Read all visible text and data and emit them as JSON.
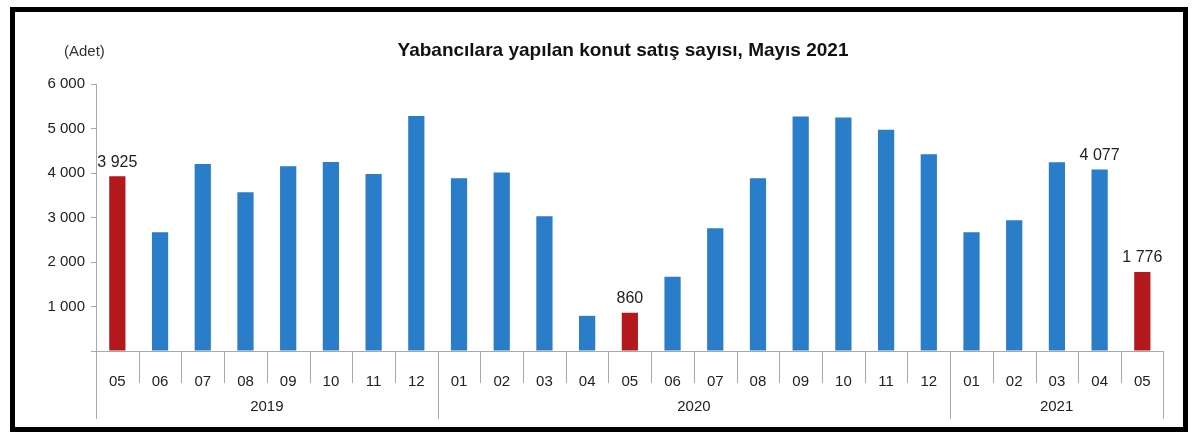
{
  "chart_data": {
    "type": "bar",
    "title": "Yabancılara yapılan konut satış sayısı, Mayıs 2021",
    "ylabel": "(Adet)",
    "x": [
      "2019-05",
      "2019-06",
      "2019-07",
      "2019-08",
      "2019-09",
      "2019-10",
      "2019-11",
      "2019-12",
      "2020-01",
      "2020-02",
      "2020-03",
      "2020-04",
      "2020-05",
      "2020-06",
      "2020-07",
      "2020-08",
      "2020-09",
      "2020-10",
      "2020-11",
      "2020-12",
      "2021-01",
      "2021-02",
      "2021-03",
      "2021-04",
      "2021-05"
    ],
    "values": [
      3925,
      2670,
      4200,
      3570,
      4150,
      4250,
      3980,
      5280,
      3880,
      4010,
      3030,
      790,
      860,
      1670,
      2760,
      3880,
      5270,
      5250,
      4970,
      4420,
      2670,
      2940,
      4240,
      4077,
      1776
    ],
    "colors": [
      "#b3191c",
      "#2a7dc9",
      "#2a7dc9",
      "#2a7dc9",
      "#2a7dc9",
      "#2a7dc9",
      "#2a7dc9",
      "#2a7dc9",
      "#2a7dc9",
      "#2a7dc9",
      "#2a7dc9",
      "#2a7dc9",
      "#b3191c",
      "#2a7dc9",
      "#2a7dc9",
      "#2a7dc9",
      "#2a7dc9",
      "#2a7dc9",
      "#2a7dc9",
      "#2a7dc9",
      "#2a7dc9",
      "#2a7dc9",
      "#2a7dc9",
      "#2a7dc9",
      "#b3191c"
    ],
    "value_labels": [
      "3 925",
      null,
      null,
      null,
      null,
      null,
      null,
      null,
      null,
      null,
      null,
      null,
      "860",
      null,
      null,
      null,
      null,
      null,
      null,
      null,
      null,
      null,
      null,
      "4 077",
      "1 776"
    ],
    "xlim": [
      "2019-04-16",
      "2021-05-16"
    ],
    "xticks": [
      {
        "value": "2019-05",
        "label": "05"
      },
      {
        "value": "2019-06",
        "label": "06"
      },
      {
        "value": "2019-07",
        "label": "07"
      },
      {
        "value": "2019-08",
        "label": "08"
      },
      {
        "value": "2019-09",
        "label": "09"
      },
      {
        "value": "2019-10",
        "label": "10"
      },
      {
        "value": "2019-11",
        "label": "11"
      },
      {
        "value": "2019-12",
        "label": "12"
      },
      {
        "value": "2020-01",
        "label": "01"
      },
      {
        "value": "2020-02",
        "label": "02"
      },
      {
        "value": "2020-03",
        "label": "03"
      },
      {
        "value": "2020-04",
        "label": "04"
      },
      {
        "value": "2020-05",
        "label": "05"
      },
      {
        "value": "2020-06",
        "label": "06"
      },
      {
        "value": "2020-07",
        "label": "07"
      },
      {
        "value": "2020-08",
        "label": "08"
      },
      {
        "value": "2020-09",
        "label": "09"
      },
      {
        "value": "2020-10",
        "label": "10"
      },
      {
        "value": "2020-11",
        "label": "11"
      },
      {
        "value": "2020-12",
        "label": "12"
      },
      {
        "value": "2021-01",
        "label": "01"
      },
      {
        "value": "2021-02",
        "label": "02"
      },
      {
        "value": "2021-03",
        "label": "03"
      },
      {
        "value": "2021-04",
        "label": "04"
      },
      {
        "value": "2021-05",
        "label": "05"
      }
    ],
    "annotations": [
      "2019",
      "2020",
      "2021"
    ],
    "ylim": [
      0,
      6000
    ],
    "yticks": [
      {
        "value": 0,
        "label": null
      },
      {
        "value": 1000,
        "label": "1 000"
      },
      {
        "value": 2000,
        "label": "2 000"
      },
      {
        "value": 3000,
        "label": "3 000"
      },
      {
        "value": 4000,
        "label": "4 000"
      },
      {
        "value": 5000,
        "label": "5 000"
      },
      {
        "value": 6000,
        "label": "6 000"
      }
    ]
  }
}
